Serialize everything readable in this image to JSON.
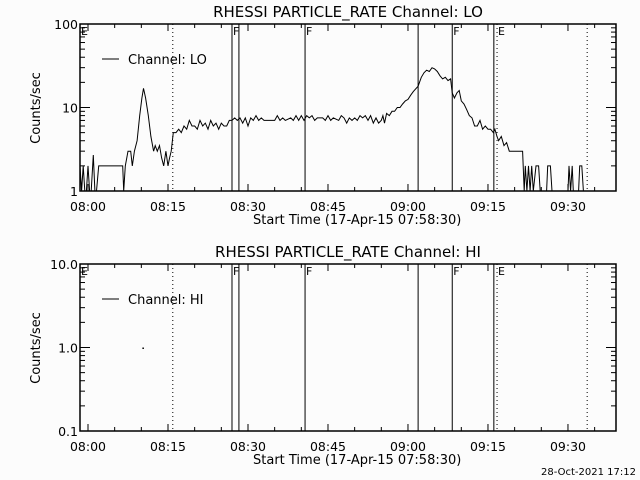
{
  "chart_data": [
    {
      "type": "line",
      "title": "RHESSI PARTICLE_RATE Channel: LO",
      "xlabel": "Start Time (17-Apr-15 07:58:30)",
      "ylabel": "Counts/sec",
      "yscale": "log",
      "ylim": [
        1,
        100
      ],
      "xlim_minutes_from_0800": [
        -1.5,
        99
      ],
      "x_tick_labels": [
        "08:00",
        "08:15",
        "08:30",
        "08:45",
        "09:00",
        "09:15",
        "09:30"
      ],
      "y_tick_labels": [
        "1",
        "10",
        "100"
      ],
      "legend": {
        "label": "Channel: LO",
        "placement": "top-left"
      },
      "series": [
        {
          "name": "Channel: LO",
          "t": [
            -1.5,
            -1.2,
            -0.9,
            -0.6,
            -0.3,
            0,
            0.3,
            0.6,
            1,
            1.3,
            1.6,
            2,
            6.5,
            6.7,
            7,
            7.5,
            8,
            8.3,
            8.7,
            9.2,
            9.7,
            10.1,
            10.4,
            10.8,
            11.3,
            11.8,
            12.3,
            12.6,
            13,
            13.4,
            13.8,
            14.2,
            14.6,
            15,
            15.3,
            15.6,
            16,
            16.5,
            17,
            17.5,
            18,
            18.5,
            19,
            19.5,
            20,
            20.5,
            21,
            21.5,
            22,
            22.5,
            23,
            23.5,
            24,
            24.5,
            25,
            25.5,
            26,
            26.5,
            27,
            27.5,
            28,
            28.5,
            29,
            29.5,
            30,
            30.5,
            31,
            31.5,
            32,
            32.5,
            33,
            34,
            35,
            35.5,
            36,
            36.5,
            37,
            38,
            38.5,
            39,
            39.5,
            40,
            40.5,
            41,
            41.5,
            42,
            42.5,
            43,
            44,
            44.5,
            45,
            45.5,
            46,
            47,
            47.5,
            48,
            48.5,
            49,
            49.5,
            50,
            50.5,
            51,
            51.5,
            52,
            52.5,
            53,
            53.5,
            54,
            54.5,
            55,
            55.3,
            55.6,
            56,
            56.5,
            57,
            57.5,
            58,
            58.5,
            59,
            59.5,
            60,
            60.5,
            61,
            61.9,
            62.5,
            63,
            63.5,
            64,
            64.5,
            65,
            65.5,
            66,
            66.5,
            67,
            67.5,
            68,
            68.3,
            68.7,
            69.2,
            69.6,
            70,
            70.5,
            71,
            71.5,
            72,
            72.5,
            73,
            73.5,
            74,
            74.5,
            75,
            75.5,
            76,
            76.3,
            76.7,
            77,
            77.5,
            78,
            78.5,
            79,
            81.5,
            81.8,
            82,
            82.3,
            82.6,
            82.9,
            83.2,
            83.5,
            84,
            84.5,
            84.8,
            86,
            86.2,
            86.7,
            87,
            90,
            90.2,
            90.5,
            90.8,
            91,
            92,
            92.2,
            92.6,
            92.9
          ],
          "values": [
            2,
            1,
            2,
            1,
            1,
            2,
            1,
            1,
            2.7,
            1,
            1,
            2,
            2,
            1,
            2,
            3,
            3,
            2,
            3,
            4,
            8,
            13,
            17,
            13,
            8,
            4.5,
            3,
            3.5,
            3,
            3.5,
            2.5,
            2,
            3,
            2,
            2.5,
            3,
            5,
            5,
            5.5,
            5,
            6,
            5.5,
            7,
            6,
            6,
            5.5,
            7,
            6,
            6.5,
            5.5,
            7,
            6,
            6.5,
            5.5,
            6.5,
            6,
            6,
            7,
            7,
            7.5,
            7,
            7.5,
            6.5,
            7.5,
            6,
            7.5,
            7,
            8,
            7,
            7.5,
            7,
            7,
            7,
            8,
            7,
            7.5,
            7,
            7.5,
            7,
            8,
            7,
            8,
            7,
            8,
            7.5,
            8,
            7,
            7.5,
            7.5,
            7,
            8,
            7,
            7.5,
            7,
            8,
            7.5,
            6.5,
            7.5,
            7,
            7.5,
            7,
            8,
            7.5,
            8,
            7,
            8,
            6.5,
            7.5,
            6.5,
            7,
            8,
            6.5,
            8.5,
            8,
            9,
            9,
            10,
            10,
            11,
            12,
            12.5,
            14,
            15.5,
            18,
            23,
            26,
            28,
            27,
            30,
            29,
            27,
            24,
            22,
            23,
            21,
            22,
            15,
            13,
            15,
            16,
            12,
            11,
            9.5,
            8,
            7.5,
            6,
            6,
            7,
            5.5,
            6,
            5.5,
            5.5,
            5,
            5.5,
            4.5,
            4,
            4.5,
            3.5,
            3.8,
            3,
            3,
            1,
            2,
            1,
            2,
            1,
            2,
            1,
            2,
            2,
            1,
            1,
            2,
            2,
            1,
            1,
            2,
            1,
            2,
            1,
            1,
            2,
            2,
            1
          ]
        }
      ],
      "markers": [
        {
          "t": -1.5,
          "style": "none",
          "label": "E"
        },
        {
          "t": 15.9,
          "style": "dotted",
          "label": ""
        },
        {
          "t": 27.0,
          "style": "solid",
          "label": "F"
        },
        {
          "t": 28.3,
          "style": "solid",
          "label": ""
        },
        {
          "t": 40.7,
          "style": "solid",
          "label": "F"
        },
        {
          "t": 61.9,
          "style": "solid",
          "label": ""
        },
        {
          "t": 68.3,
          "style": "solid",
          "label": "F"
        },
        {
          "t": 76.1,
          "style": "solid",
          "label": ""
        },
        {
          "t": 76.7,
          "style": "dotted",
          "label": "E"
        },
        {
          "t": 93.6,
          "style": "dotted",
          "label": ""
        }
      ]
    },
    {
      "type": "line",
      "title": "RHESSI PARTICLE_RATE Channel: HI",
      "xlabel": "Start Time (17-Apr-15 07:58:30)",
      "ylabel": "Counts/sec",
      "yscale": "log",
      "ylim": [
        0.1,
        10
      ],
      "xlim_minutes_from_0800": [
        -1.5,
        99
      ],
      "x_tick_labels": [
        "08:00",
        "08:15",
        "08:30",
        "08:45",
        "09:00",
        "09:15",
        "09:30"
      ],
      "y_tick_labels": [
        "0.1",
        "1.0",
        "10.0"
      ],
      "legend": {
        "label": "Channel: HI",
        "placement": "top-left"
      },
      "series": [
        {
          "name": "Channel: HI",
          "t": [
            10.2
          ],
          "values": [
            1.0
          ]
        }
      ],
      "markers": [
        {
          "t": -1.5,
          "style": "none",
          "label": "E"
        },
        {
          "t": 15.9,
          "style": "dotted",
          "label": ""
        },
        {
          "t": 27.0,
          "style": "solid",
          "label": "F"
        },
        {
          "t": 28.3,
          "style": "solid",
          "label": ""
        },
        {
          "t": 40.7,
          "style": "solid",
          "label": "F"
        },
        {
          "t": 61.9,
          "style": "solid",
          "label": ""
        },
        {
          "t": 68.3,
          "style": "solid",
          "label": "F"
        },
        {
          "t": 76.1,
          "style": "solid",
          "label": ""
        },
        {
          "t": 76.7,
          "style": "dotted",
          "label": "E"
        },
        {
          "t": 93.6,
          "style": "dotted",
          "label": ""
        }
      ]
    }
  ],
  "footer": {
    "timestamp": "28-Oct-2021 17:12"
  }
}
